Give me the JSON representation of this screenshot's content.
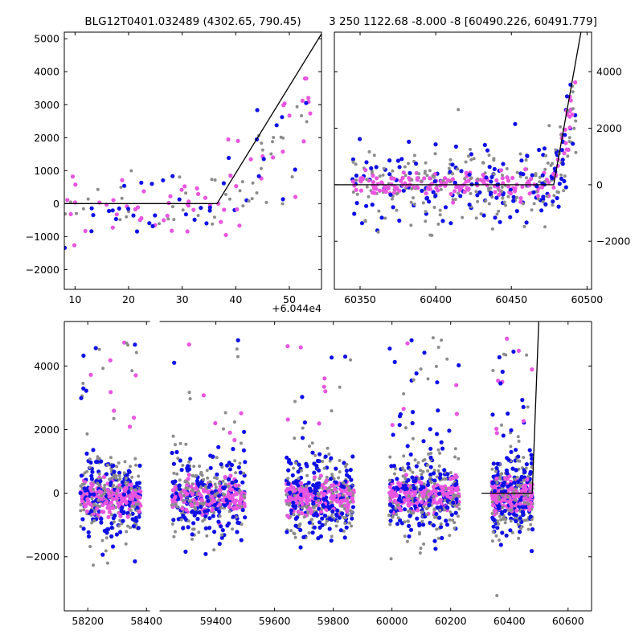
{
  "chart_data": [
    {
      "id": "top-left",
      "type": "scatter",
      "title": "BLG12T0401.032489 (4302.65, 790.45)",
      "x_offset_label": "+6.044e4",
      "xlim": [
        8,
        56
      ],
      "ylim": [
        -2600,
        5200
      ],
      "x_ticks": [
        10,
        20,
        30,
        40,
        50
      ],
      "x_tick_labels": [
        "10",
        "20",
        "30",
        "40",
        "50"
      ],
      "y_ticks": [
        -2000,
        -1000,
        0,
        1000,
        2000,
        3000,
        4000,
        5000
      ],
      "y_tick_labels": [
        "−2000",
        "−1000",
        "0",
        "1000",
        "2000",
        "3000",
        "4000",
        "5000"
      ],
      "y_axis_side": "left",
      "model_line": {
        "x": [
          8,
          36.5,
          56
        ],
        "y": [
          0,
          0,
          5150
        ]
      }
    },
    {
      "id": "top-right",
      "type": "scatter",
      "title": "3 250 1122.68 -8.000 -8 [60490.226, 60491.779]",
      "xlim": [
        60333,
        60503
      ],
      "ylim": [
        -3700,
        5400
      ],
      "x_ticks": [
        60350,
        60400,
        60450,
        60500
      ],
      "x_tick_labels": [
        "60350",
        "60400",
        "60450",
        "60500"
      ],
      "y_ticks": [
        -2000,
        0,
        2000,
        4000
      ],
      "y_tick_labels": [
        "−2000",
        "0",
        "2000",
        "4000"
      ],
      "y_axis_side": "right",
      "model_line": {
        "x": [
          60333,
          60478,
          60496
        ],
        "y": [
          0,
          0,
          5400
        ]
      }
    },
    {
      "id": "bottom",
      "type": "scatter",
      "title": "",
      "xlim": [
        58120,
        60680
      ],
      "ylim": [
        -3700,
        5400
      ],
      "x_ticks": [
        58200,
        58400,
        59400,
        59600,
        59800,
        60000,
        60200,
        60400,
        60600
      ],
      "x_tick_labels": [
        "58200",
        "58400",
        "59400",
        "59600",
        "59800",
        "60000",
        "60200",
        "60400",
        "60600"
      ],
      "y_ticks": [
        -2000,
        0,
        2000,
        4000
      ],
      "y_tick_labels": [
        "−2000",
        "0",
        "2000",
        "4000"
      ],
      "y_axis_side": "left",
      "axis_break": [
        58420,
        59200
      ],
      "model_line": {
        "x": [
          60305,
          60478,
          60500
        ],
        "y": [
          0,
          0,
          5400
        ]
      },
      "seasons": [
        [
          58175,
          58380
        ],
        [
          59250,
          59500
        ],
        [
          59640,
          59870
        ],
        [
          59990,
          60230
        ],
        [
          60340,
          60480
        ]
      ]
    }
  ],
  "colors": {
    "series_blue": "#1010e6",
    "series_magenta": "#e855e0",
    "series_gray": "#8c8c8c",
    "model": "#000000"
  }
}
